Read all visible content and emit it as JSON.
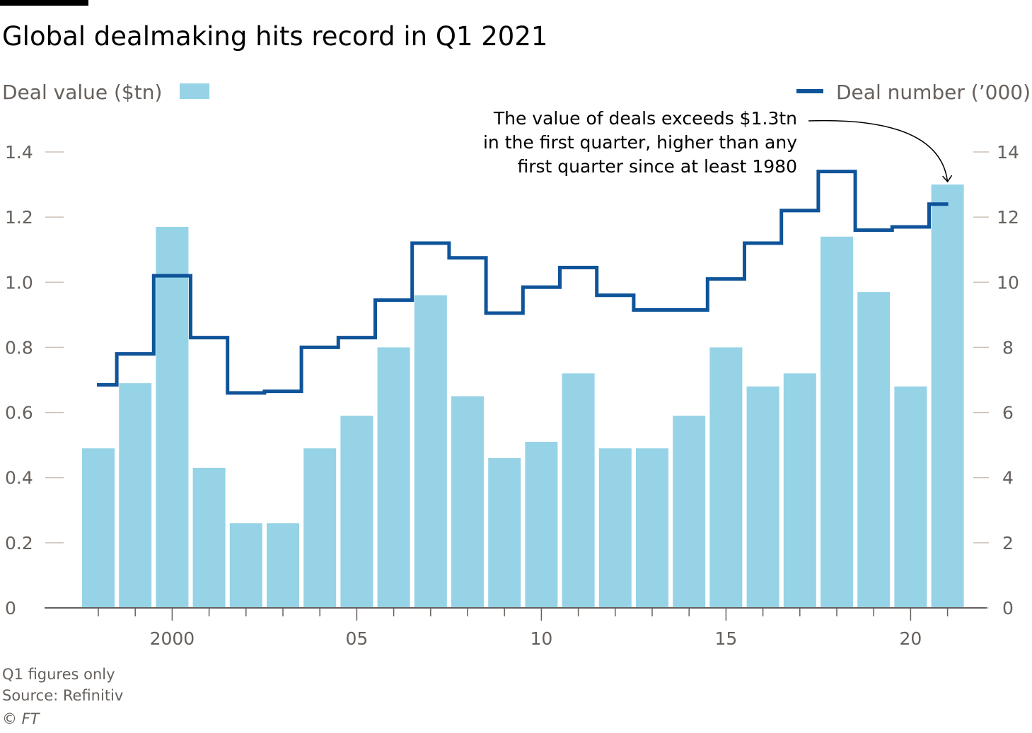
{
  "chart_data": {
    "type": "bar",
    "title": "Global dealmaking hits record in Q1 2021",
    "left_axis_label": "Deal value ($tn)",
    "right_axis_label": "Deal number (’000)",
    "years": [
      1998,
      1999,
      2000,
      2001,
      2002,
      2003,
      2004,
      2005,
      2006,
      2007,
      2008,
      2009,
      2010,
      2011,
      2012,
      2013,
      2014,
      2015,
      2016,
      2017,
      2018,
      2019,
      2020,
      2021
    ],
    "x_tick_labels": [
      {
        "year": 2000,
        "label": "2000"
      },
      {
        "year": 2005,
        "label": "05"
      },
      {
        "year": 2010,
        "label": "10"
      },
      {
        "year": 2015,
        "label": "15"
      },
      {
        "year": 2020,
        "label": "20"
      }
    ],
    "series": [
      {
        "name": "Deal value ($tn)",
        "type": "bar",
        "axis": "left",
        "color": "#96d3e6",
        "values": [
          0.49,
          0.69,
          1.17,
          0.43,
          0.26,
          0.26,
          0.49,
          0.59,
          0.8,
          0.96,
          0.65,
          0.46,
          0.51,
          0.72,
          0.49,
          0.49,
          0.59,
          0.8,
          0.68,
          0.72,
          1.14,
          0.97,
          0.68,
          1.3
        ]
      },
      {
        "name": "Deal number (’000)",
        "type": "step-line",
        "axis": "right",
        "color": "#0f5499",
        "values": [
          6.85,
          7.8,
          10.2,
          8.3,
          6.6,
          6.65,
          8.0,
          8.3,
          9.45,
          11.2,
          10.75,
          9.05,
          9.85,
          10.45,
          9.6,
          9.15,
          9.15,
          10.1,
          11.2,
          12.2,
          13.4,
          11.6,
          11.7,
          12.4
        ]
      }
    ],
    "left_axis": {
      "min": 0,
      "max": 1.4,
      "ticks": [
        "0",
        "0.2",
        "0.4",
        "0.6",
        "0.8",
        "1.0",
        "1.2",
        "1.4"
      ]
    },
    "right_axis": {
      "min": 0,
      "max": 14,
      "ticks": [
        "0",
        "2",
        "4",
        "6",
        "8",
        "10",
        "12",
        "14"
      ]
    },
    "annotation": {
      "lines": [
        "The value of deals exceeds $1.3tn",
        "in the first quarter, higher than any",
        "first quarter since at least 1980"
      ],
      "target_year": 2021
    },
    "footnotes": [
      "Q1 figures only",
      "Source: Refinitiv",
      "© FT"
    ],
    "grid": false,
    "legend_placement": "top"
  }
}
